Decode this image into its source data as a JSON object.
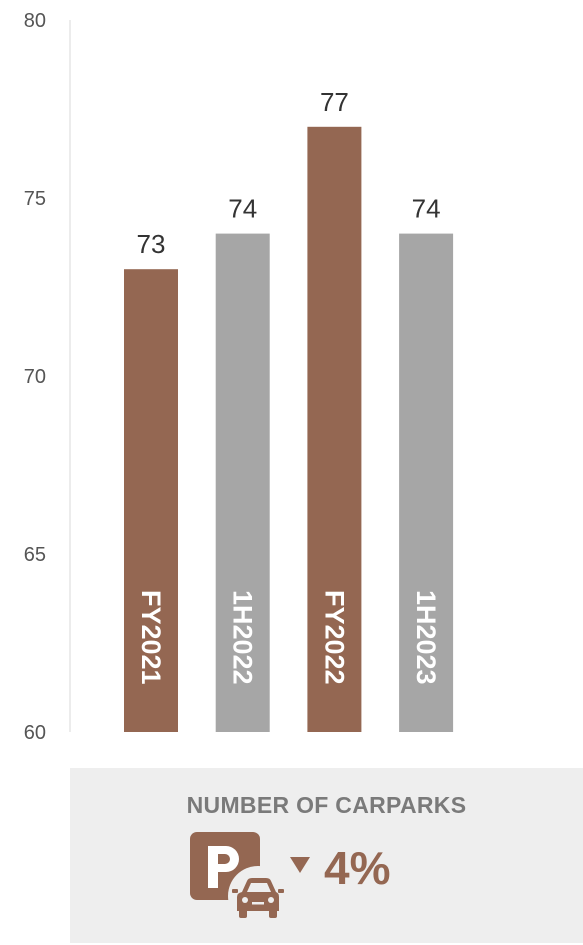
{
  "chart_data": {
    "type": "bar",
    "categories": [
      "FY2021",
      "1H2022",
      "FY2022",
      "1H2023"
    ],
    "values": [
      73,
      74,
      77,
      74
    ],
    "bar_colors": [
      "#946752",
      "#a6a6a6",
      "#946752",
      "#a6a6a6"
    ],
    "ylim": [
      60,
      80
    ],
    "yticks": [
      60,
      65,
      70,
      75,
      80
    ],
    "xlabel": "",
    "ylabel": "",
    "grid": false,
    "data_labels": true
  },
  "kpi": {
    "title": "NUMBER OF CARPARKS",
    "icon": "parking-car-icon",
    "direction": "down",
    "change": "4%",
    "accent_color": "#946752"
  }
}
